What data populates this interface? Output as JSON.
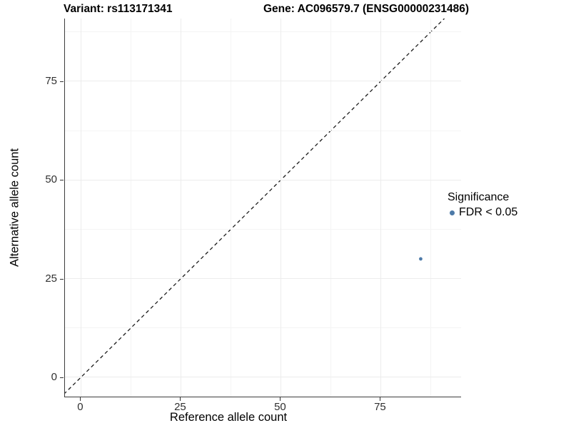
{
  "chart_data": {
    "type": "scatter",
    "title_left": "Variant: rs113171341",
    "title_right": "Gene: AC096579.7 (ENSG00000231486)",
    "xlabel": "Reference allele count",
    "ylabel": "Alternative allele count",
    "xlim": [
      -4,
      95.1
    ],
    "ylim": [
      -4.9,
      90.9
    ],
    "x_ticks": [
      0,
      25,
      50,
      75
    ],
    "y_ticks": [
      0,
      25,
      50,
      75
    ],
    "x_minor_ticks": [
      12.5,
      37.5,
      62.5,
      87.5
    ],
    "y_minor_ticks": [
      12.5,
      37.5,
      62.5,
      87.5
    ],
    "grid": true,
    "background": "#ffffff",
    "series": [
      {
        "name": "FDR < 0.05",
        "color": "#4d7aa8",
        "marker": "circle",
        "points": [
          {
            "x": 85,
            "y": 30
          }
        ]
      }
    ],
    "reference_line": {
      "kind": "identity",
      "slope": 1,
      "intercept": 0,
      "style": "dashed",
      "color": "#1c1c1c"
    },
    "legend": {
      "title": "Significance",
      "position": "right",
      "items": [
        {
          "label": "FDR < 0.05",
          "color": "#4d7aa8",
          "marker": "circle"
        }
      ]
    }
  },
  "colors": {
    "point_blue": "#4d7aa8",
    "grid_major": "#ececec",
    "grid_minor": "#f4f4f4",
    "axis_line": "#3d3d3d",
    "tick_label": "#303030"
  }
}
